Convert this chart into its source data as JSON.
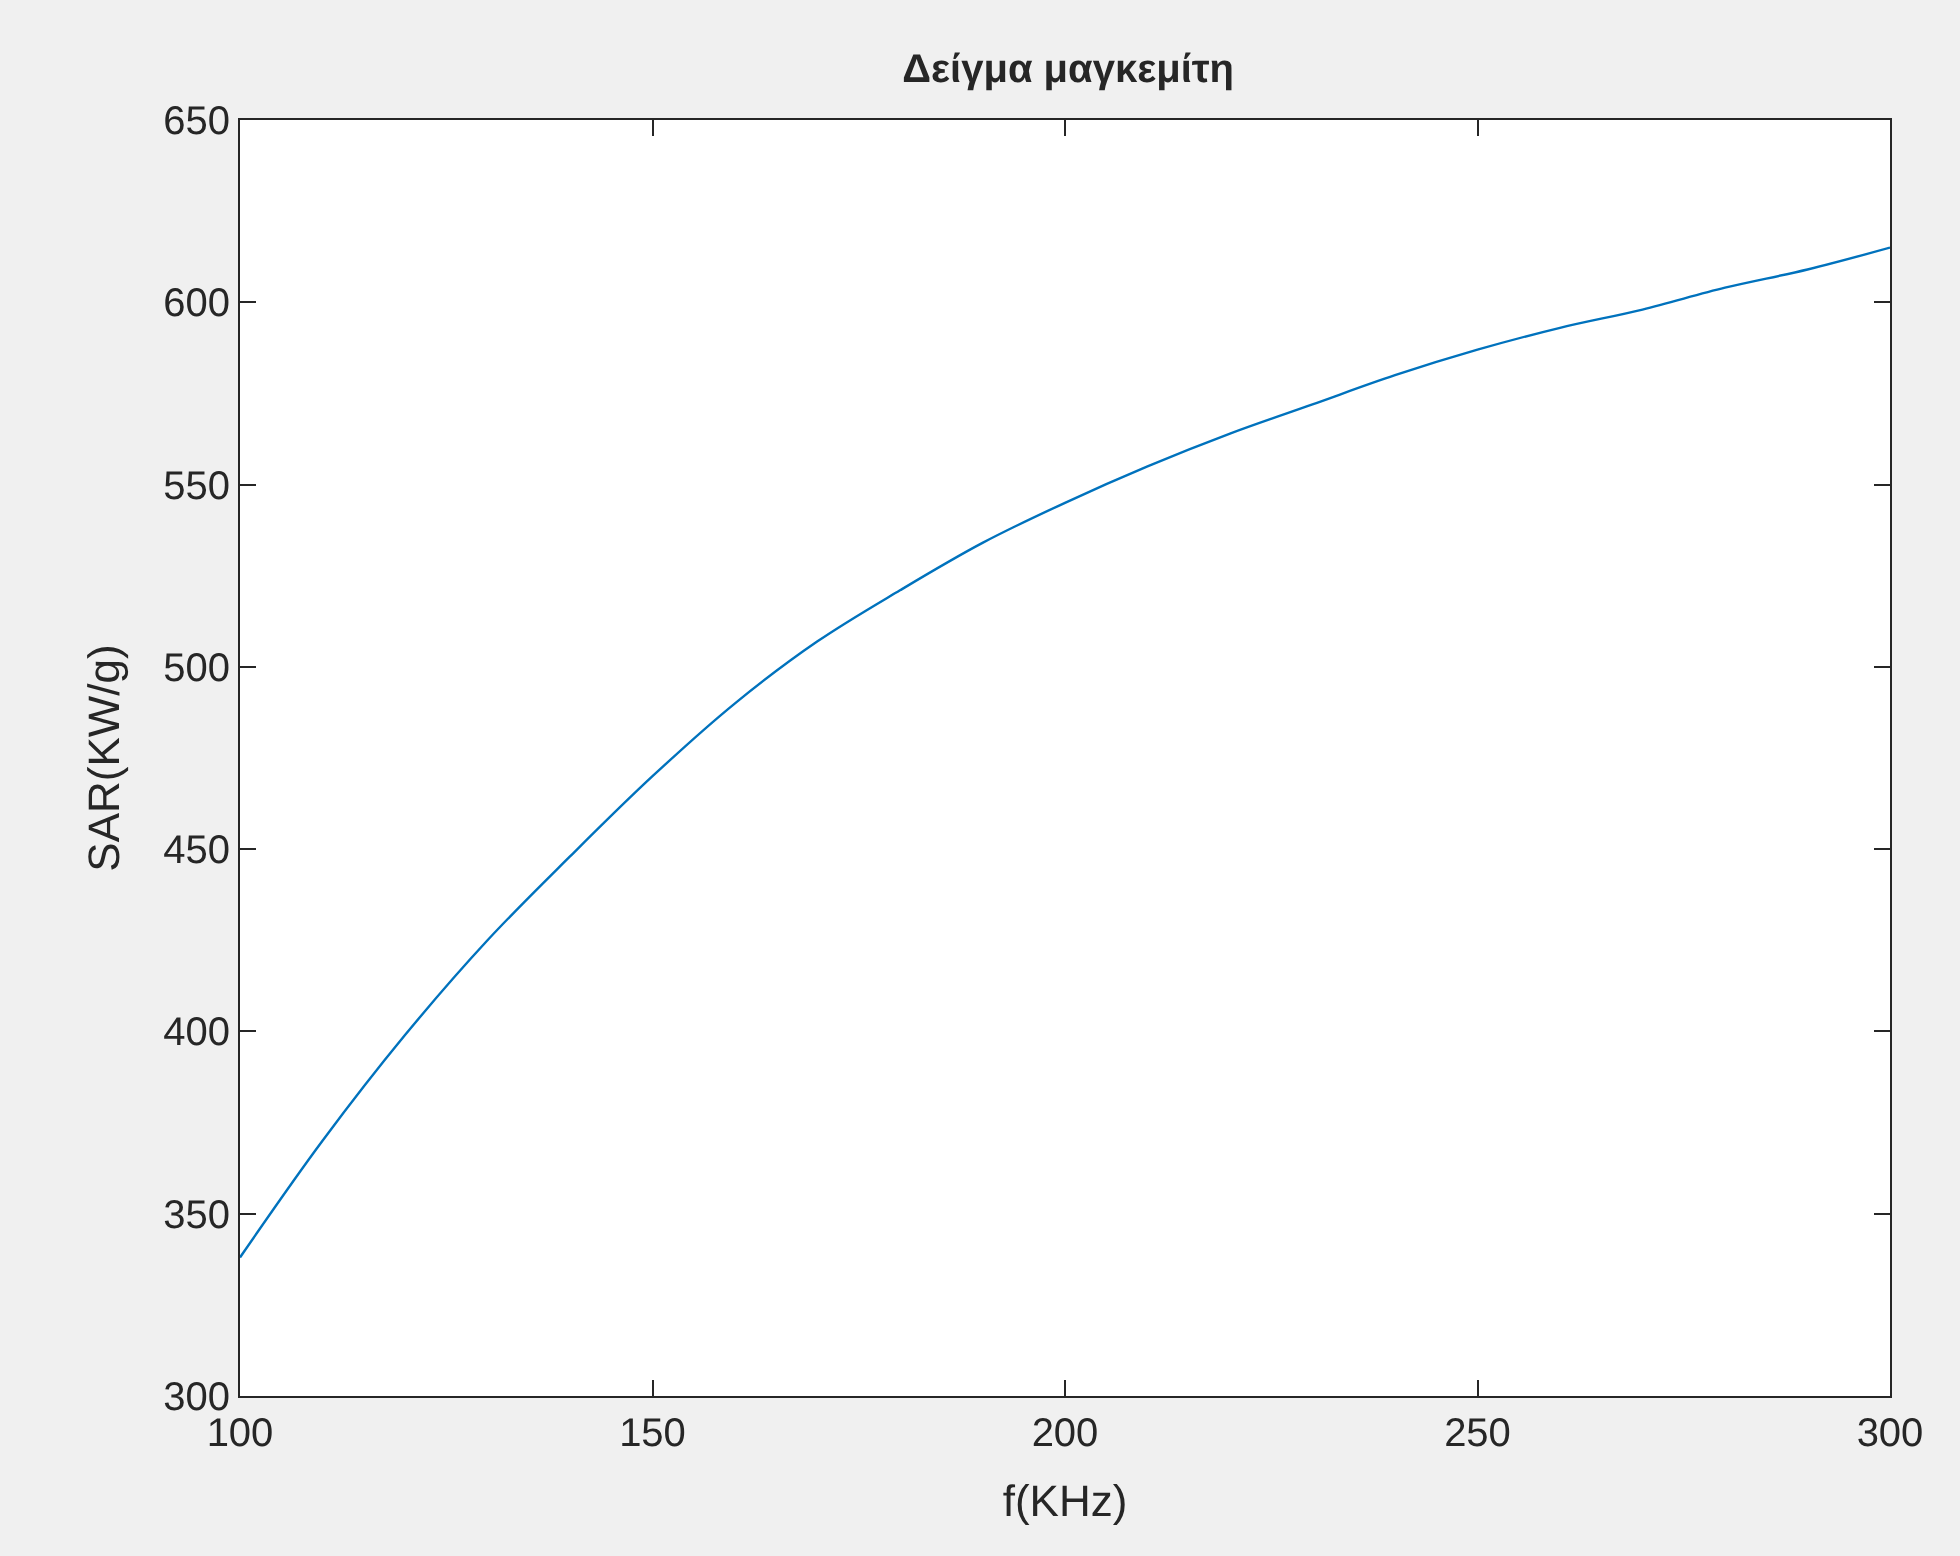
{
  "chart_data": {
    "type": "line",
    "title": "Δείγμα μαγκεμίτη",
    "xlabel": "f(KHz)",
    "ylabel": "SAR(KW/g)",
    "x": [
      100,
      110,
      120,
      130,
      140,
      150,
      160,
      170,
      180,
      190,
      200,
      210,
      220,
      230,
      240,
      250,
      260,
      270,
      280,
      290,
      300
    ],
    "series": [
      {
        "color": "#0072bd",
        "values": [
          338,
          370,
          399,
          425,
          448,
          470,
          490,
          507,
          521,
          534,
          545,
          555,
          564,
          572,
          580,
          587,
          593,
          598,
          604,
          609,
          615
        ]
      }
    ],
    "xlim": [
      100,
      300
    ],
    "xticks": [
      100,
      150,
      200,
      250,
      300
    ],
    "ylim": [
      300,
      650
    ],
    "yticks": [
      300,
      350,
      400,
      450,
      500,
      550,
      600,
      650
    ],
    "grid": false,
    "marker": "none",
    "line_style": "solid"
  }
}
